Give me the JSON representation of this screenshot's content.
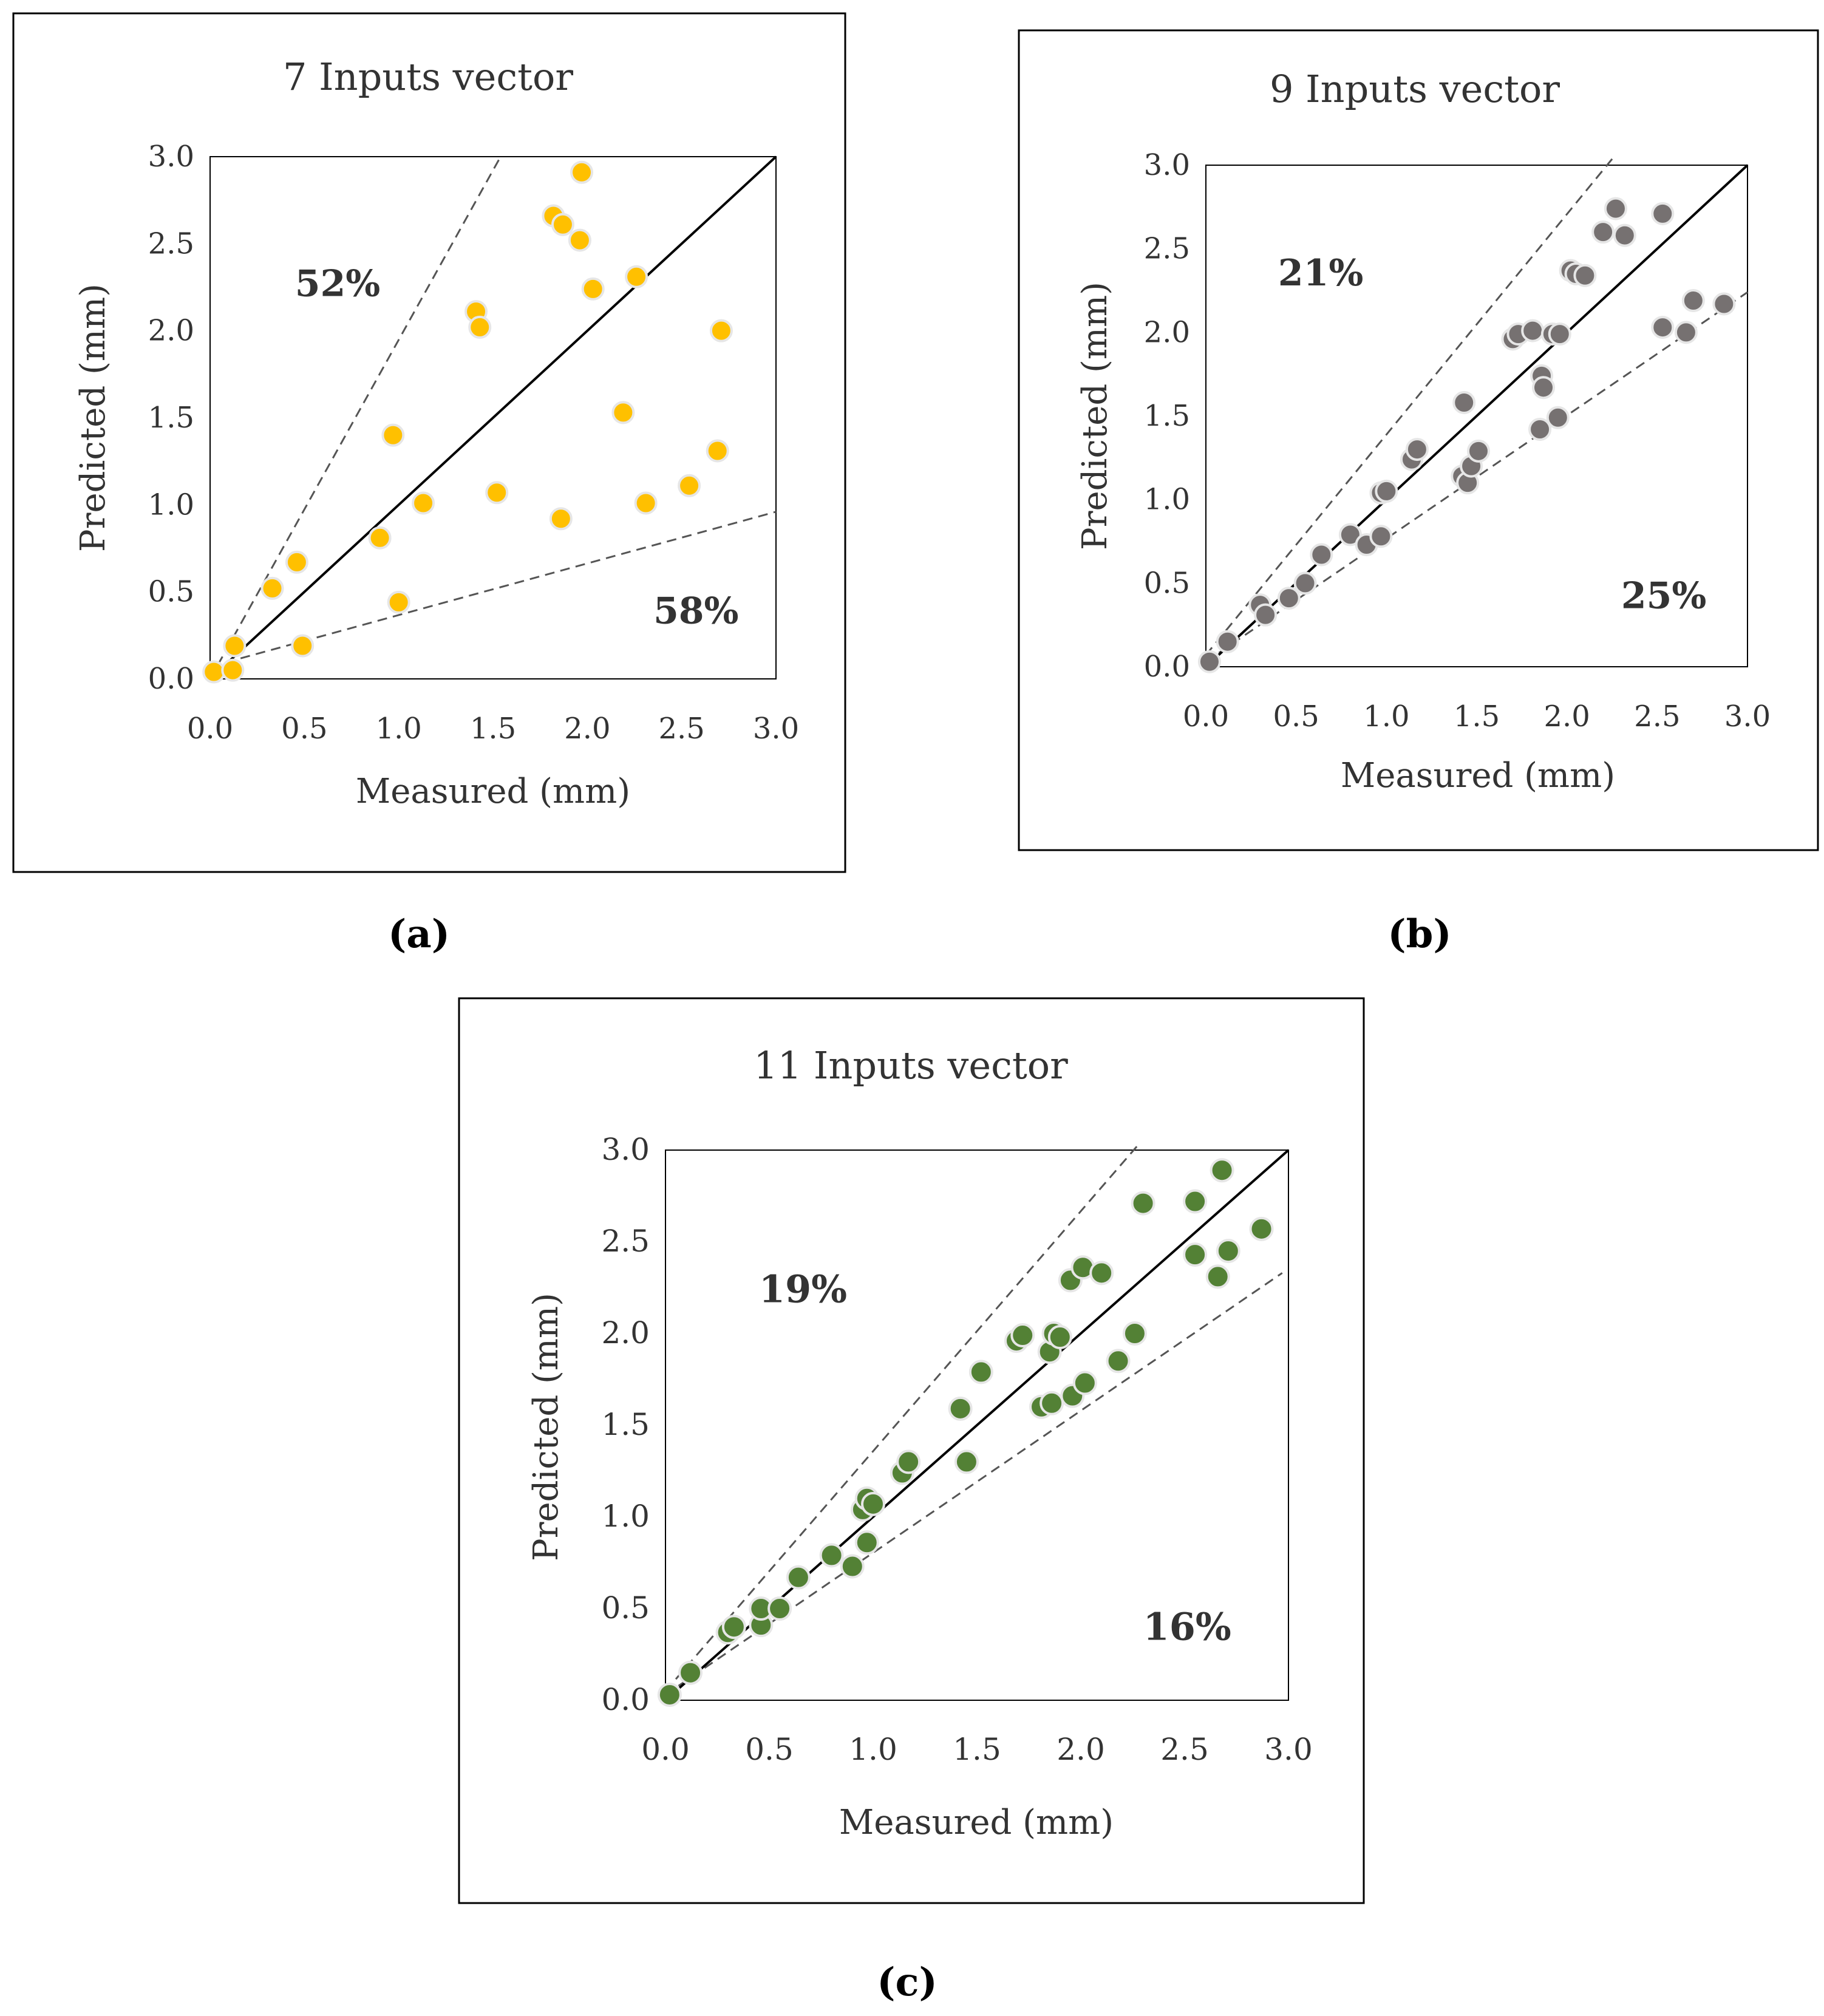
{
  "chart_data": [
    {
      "type": "scatter",
      "panel_label": "a",
      "title": "7 Inputs vector",
      "xlabel": "Measured (mm)",
      "ylabel": "Predicted (mm)",
      "xlim": [
        0,
        3.0
      ],
      "ylim": [
        0,
        3.0
      ],
      "ticks": [
        "0.0",
        "0.5",
        "1.0",
        "1.5",
        "2.0",
        "2.5",
        "3.0"
      ],
      "marker_color": "#FFC000",
      "reference_line": {
        "name": "1:1 line",
        "points": [
          [
            0,
            0
          ],
          [
            3.0,
            3.0
          ]
        ]
      },
      "envelope_lines": [
        {
          "name": "upper envelope",
          "points": [
            [
              0,
              0
            ],
            [
              1.54,
              3.0
            ]
          ]
        },
        {
          "name": "lower envelope",
          "points": [
            [
              0,
              0.07
            ],
            [
              3.0,
              0.96
            ]
          ]
        }
      ],
      "annotations": [
        {
          "text": "52%",
          "x": 0.45,
          "y": 2.2
        },
        {
          "text": "58%",
          "x": 2.35,
          "y": 0.32
        }
      ],
      "points": [
        [
          0.02,
          0.04
        ],
        [
          0.12,
          0.05
        ],
        [
          0.13,
          0.19
        ],
        [
          0.33,
          0.52
        ],
        [
          0.46,
          0.67
        ],
        [
          0.49,
          0.19
        ],
        [
          0.9,
          0.81
        ],
        [
          0.97,
          1.4
        ],
        [
          1.0,
          0.44
        ],
        [
          1.13,
          1.01
        ],
        [
          1.41,
          2.11
        ],
        [
          1.43,
          2.02
        ],
        [
          1.52,
          1.07
        ],
        [
          1.82,
          2.66
        ],
        [
          1.86,
          0.92
        ],
        [
          1.87,
          2.61
        ],
        [
          1.96,
          2.52
        ],
        [
          1.97,
          2.91
        ],
        [
          2.03,
          2.24
        ],
        [
          2.19,
          1.53
        ],
        [
          2.26,
          2.31
        ],
        [
          2.31,
          1.01
        ],
        [
          2.54,
          1.11
        ],
        [
          2.69,
          1.31
        ],
        [
          2.71,
          2.0
        ]
      ]
    },
    {
      "type": "scatter",
      "panel_label": "b",
      "title": "9 Inputs vector",
      "xlabel": "Measured (mm)",
      "ylabel": "Predicted (mm)",
      "xlim": [
        0,
        3.0
      ],
      "ylim": [
        0,
        3.0
      ],
      "ticks": [
        "0.0",
        "0.5",
        "1.0",
        "1.5",
        "2.0",
        "2.5",
        "3.0"
      ],
      "marker_color": "#767171",
      "reference_line": {
        "name": "1:1 line",
        "points": [
          [
            0,
            0
          ],
          [
            3.0,
            3.0
          ]
        ]
      },
      "envelope_lines": [
        {
          "name": "upper envelope",
          "points": [
            [
              0,
              0.07
            ],
            [
              2.26,
              3.05
            ]
          ]
        },
        {
          "name": "lower envelope",
          "points": [
            [
              0,
              0.03
            ],
            [
              3.0,
              2.24
            ]
          ]
        }
      ],
      "annotations": [
        {
          "text": "21%",
          "x": 0.4,
          "y": 2.28
        },
        {
          "text": "25%",
          "x": 2.3,
          "y": 0.35
        }
      ],
      "points": [
        [
          0.02,
          0.03
        ],
        [
          0.12,
          0.15
        ],
        [
          0.3,
          0.37
        ],
        [
          0.33,
          0.31
        ],
        [
          0.46,
          0.41
        ],
        [
          0.55,
          0.5
        ],
        [
          0.64,
          0.67
        ],
        [
          0.8,
          0.79
        ],
        [
          0.89,
          0.73
        ],
        [
          0.97,
          0.78
        ],
        [
          0.97,
          1.04
        ],
        [
          1.0,
          1.05
        ],
        [
          1.14,
          1.24
        ],
        [
          1.17,
          1.3
        ],
        [
          1.42,
          1.14
        ],
        [
          1.43,
          1.58
        ],
        [
          1.45,
          1.1
        ],
        [
          1.47,
          1.2
        ],
        [
          1.51,
          1.29
        ],
        [
          1.7,
          1.96
        ],
        [
          1.73,
          1.99
        ],
        [
          1.81,
          2.01
        ],
        [
          1.85,
          1.42
        ],
        [
          1.86,
          1.74
        ],
        [
          1.87,
          1.67
        ],
        [
          1.92,
          1.99
        ],
        [
          1.95,
          1.49
        ],
        [
          1.96,
          1.99
        ],
        [
          2.02,
          2.37
        ],
        [
          2.05,
          2.35
        ],
        [
          2.1,
          2.34
        ],
        [
          2.2,
          2.6
        ],
        [
          2.27,
          2.74
        ],
        [
          2.32,
          2.58
        ],
        [
          2.53,
          2.71
        ],
        [
          2.53,
          2.03
        ],
        [
          2.66,
          2.0
        ],
        [
          2.7,
          2.19
        ],
        [
          2.87,
          2.17
        ]
      ]
    },
    {
      "type": "scatter",
      "panel_label": "c",
      "title": "11 Inputs vector",
      "xlabel": "Measured (mm)",
      "ylabel": "Predicted (mm)",
      "xlim": [
        0,
        3.0
      ],
      "ylim": [
        0,
        3.0
      ],
      "ticks": [
        "0.0",
        "0.5",
        "1.0",
        "1.5",
        "2.0",
        "2.5",
        "3.0"
      ],
      "marker_color": "#538135",
      "reference_line": {
        "name": "1:1 line",
        "points": [
          [
            0,
            0
          ],
          [
            3.0,
            3.0
          ]
        ]
      },
      "envelope_lines": [
        {
          "name": "upper envelope",
          "points": [
            [
              0,
              0.05
            ],
            [
              2.27,
              3.02
            ]
          ]
        },
        {
          "name": "lower envelope",
          "points": [
            [
              0,
              0.03
            ],
            [
              2.97,
              2.33
            ]
          ]
        }
      ],
      "annotations": [
        {
          "text": "19%",
          "x": 0.45,
          "y": 2.17
        },
        {
          "text": "16%",
          "x": 2.3,
          "y": 0.33
        }
      ],
      "points": [
        [
          0.02,
          0.03
        ],
        [
          0.12,
          0.15
        ],
        [
          0.3,
          0.37
        ],
        [
          0.33,
          0.4
        ],
        [
          0.46,
          0.41
        ],
        [
          0.46,
          0.5
        ],
        [
          0.55,
          0.5
        ],
        [
          0.64,
          0.67
        ],
        [
          0.8,
          0.79
        ],
        [
          0.9,
          0.73
        ],
        [
          0.95,
          1.04
        ],
        [
          0.97,
          0.86
        ],
        [
          0.97,
          1.1
        ],
        [
          1.0,
          1.07
        ],
        [
          1.14,
          1.24
        ],
        [
          1.17,
          1.3
        ],
        [
          1.42,
          1.59
        ],
        [
          1.45,
          1.3
        ],
        [
          1.52,
          1.79
        ],
        [
          1.69,
          1.96
        ],
        [
          1.72,
          1.99
        ],
        [
          1.81,
          1.6
        ],
        [
          1.85,
          1.9
        ],
        [
          1.86,
          1.62
        ],
        [
          1.87,
          2.0
        ],
        [
          1.9,
          1.98
        ],
        [
          1.95,
          2.29
        ],
        [
          1.96,
          1.66
        ],
        [
          2.01,
          2.36
        ],
        [
          2.02,
          1.73
        ],
        [
          2.1,
          2.33
        ],
        [
          2.18,
          1.85
        ],
        [
          2.26,
          2.0
        ],
        [
          2.3,
          2.71
        ],
        [
          2.55,
          2.72
        ],
        [
          2.55,
          2.43
        ],
        [
          2.66,
          2.31
        ],
        [
          2.68,
          2.89
        ],
        [
          2.71,
          2.45
        ],
        [
          2.87,
          2.57
        ]
      ]
    }
  ],
  "panel_labels": [
    "(a)",
    "(b)",
    "(c)"
  ]
}
